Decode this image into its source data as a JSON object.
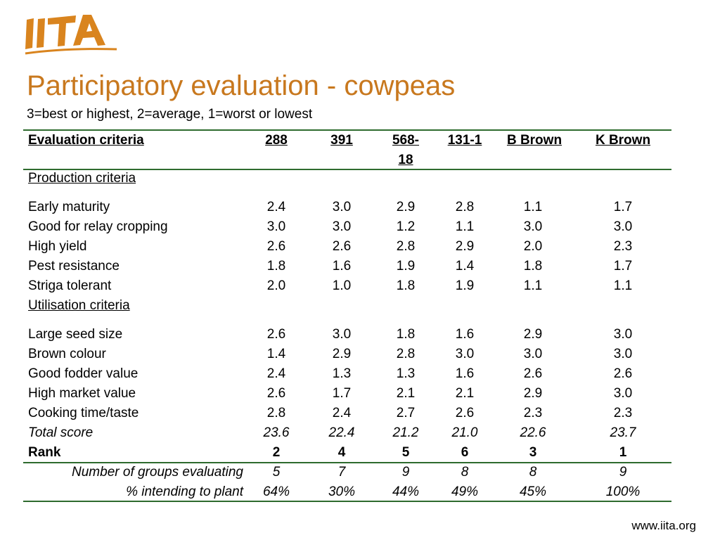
{
  "brand": {
    "logo_text": "IITA",
    "logo_color": "#d9841e"
  },
  "title": "Participatory evaluation - cowpeas",
  "subtitle": "3=best or highest, 2=average, 1=worst or lowest",
  "table": {
    "headers": [
      "Evaluation criteria",
      "288",
      "391",
      "568-",
      "18",
      "131-1",
      "B Brown",
      "K Brown"
    ],
    "sections": [
      {
        "label": "Production criteria",
        "rows": [
          {
            "name": "Early maturity",
            "values": [
              "2.4",
              "3.0",
              "2.9",
              "2.8",
              "1.1",
              "1.7"
            ]
          },
          {
            "name": "Good for relay cropping",
            "values": [
              "3.0",
              "3.0",
              "1.2",
              "1.1",
              "3.0",
              "3.0"
            ]
          },
          {
            "name": "High yield",
            "values": [
              "2.6",
              "2.6",
              "2.8",
              "2.9",
              "2.0",
              "2.3"
            ]
          },
          {
            "name": "Pest resistance",
            "values": [
              "1.8",
              "1.6",
              "1.9",
              "1.4",
              "1.8",
              "1.7"
            ]
          },
          {
            "name": "Striga tolerant",
            "values": [
              "2.0",
              "1.0",
              "1.8",
              "1.9",
              "1.1",
              "1.1"
            ]
          }
        ]
      },
      {
        "label": "Utilisation criteria",
        "rows": [
          {
            "name": "Large seed size",
            "values": [
              "2.6",
              "3.0",
              "1.8",
              "1.6",
              "2.9",
              "3.0"
            ]
          },
          {
            "name": "Brown colour",
            "values": [
              "1.4",
              "2.9",
              "2.8",
              "3.0",
              "3.0",
              "3.0"
            ]
          },
          {
            "name": "Good fodder value",
            "values": [
              "2.4",
              "1.3",
              "1.3",
              "1.6",
              "2.6",
              "2.6"
            ]
          },
          {
            "name": "High market value",
            "values": [
              "2.6",
              "1.7",
              "2.1",
              "2.1",
              "2.9",
              "3.0"
            ]
          },
          {
            "name": "Cooking time/taste",
            "values": [
              "2.8",
              "2.4",
              "2.7",
              "2.6",
              "2.3",
              "2.3"
            ]
          }
        ]
      }
    ],
    "total": {
      "name": "Total score",
      "values": [
        "23.6",
        "22.4",
        "21.2",
        "21.0",
        "22.6",
        "23.7"
      ]
    },
    "rank": {
      "name": "Rank",
      "values": [
        "2",
        "4",
        "5",
        "6",
        "3",
        "1"
      ]
    },
    "groups": {
      "name": "Number of groups evaluating",
      "values": [
        "5",
        "7",
        "9",
        "8",
        "8",
        "9"
      ]
    },
    "planting": {
      "name": "% intending to plant",
      "values": [
        "64%",
        "30%",
        "44%",
        "49%",
        "45%",
        "100%"
      ]
    }
  },
  "footer": {
    "website": "www.iita.org"
  },
  "colors": {
    "title": "#c8781e",
    "rule": "#2e6b2e"
  }
}
